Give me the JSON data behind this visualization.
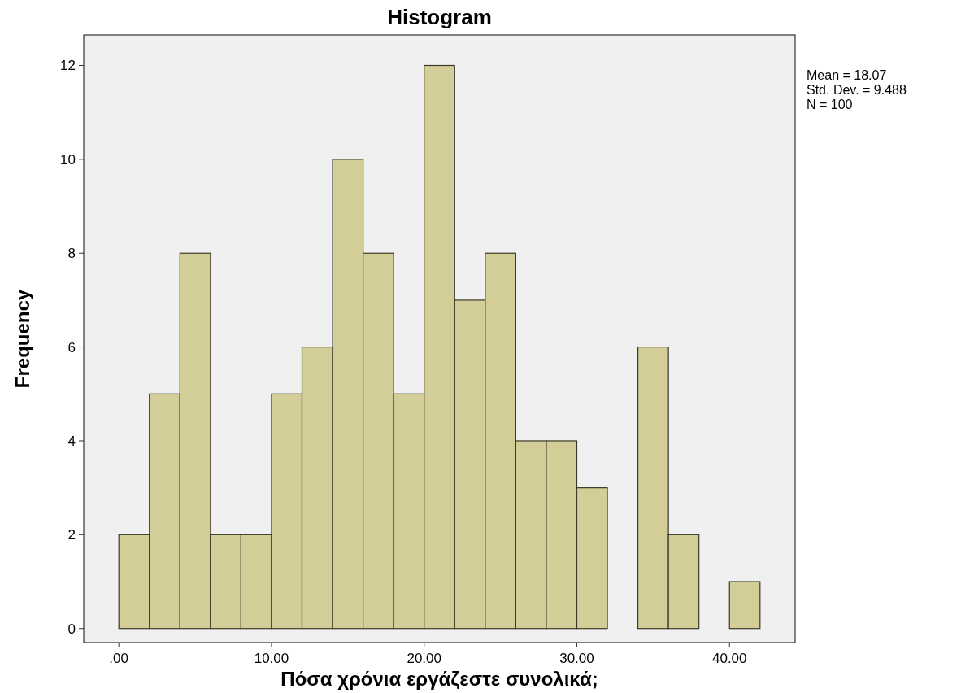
{
  "chart_data": {
    "type": "histogram",
    "title": "Histogram",
    "xlabel": "Πόσα χρόνια εργάζεστε συνολικά;",
    "ylabel": "Frequency",
    "bins": [
      0,
      2,
      4,
      6,
      8,
      10,
      12,
      14,
      16,
      18,
      20,
      22,
      24,
      26,
      28,
      30,
      32,
      34,
      36,
      38,
      40,
      42
    ],
    "values": [
      2,
      5,
      8,
      2,
      2,
      5,
      6,
      10,
      8,
      5,
      12,
      7,
      8,
      4,
      4,
      3,
      0,
      6,
      2,
      0,
      1
    ],
    "color": "#d3ce97",
    "xlim": [
      -2.3,
      44.3
    ],
    "xticks": [
      {
        "value": 0,
        "label": ".00"
      },
      {
        "value": 10,
        "label": "10.00"
      },
      {
        "value": 20,
        "label": "20.00"
      },
      {
        "value": 30,
        "label": "30.00"
      },
      {
        "value": 40,
        "label": "40.00"
      }
    ],
    "ylim": [
      -0.3,
      12.65
    ],
    "yticks": [
      0,
      2,
      4,
      6,
      8,
      10,
      12
    ],
    "annotations": [
      "Mean = 18.07",
      "Std. Dev. = 9.488",
      "N = 100"
    ]
  }
}
